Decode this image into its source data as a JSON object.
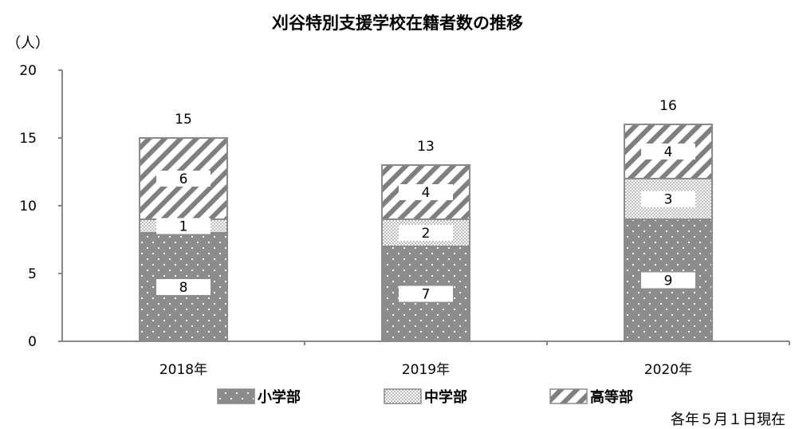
{
  "chart_data": {
    "type": "bar",
    "stacked": true,
    "title": "刈谷特別支援学校在籍者数の推移",
    "ylabel": "（人）",
    "xlabel": "",
    "categories": [
      "2018年",
      "2019年",
      "2020年"
    ],
    "series": [
      {
        "name": "小学部",
        "values": [
          8,
          7,
          9
        ],
        "pattern": "dots"
      },
      {
        "name": "中学部",
        "values": [
          1,
          2,
          3
        ],
        "pattern": "dense-dots"
      },
      {
        "name": "高等部",
        "values": [
          6,
          4,
          4
        ],
        "pattern": "diagonal-hatch"
      }
    ],
    "totals": [
      15,
      13,
      16
    ],
    "ylim": [
      0,
      20
    ],
    "yticks": [
      0,
      5,
      10,
      15,
      20
    ],
    "grid": false,
    "legend": "bottom",
    "note": "各年５月１日現在"
  }
}
